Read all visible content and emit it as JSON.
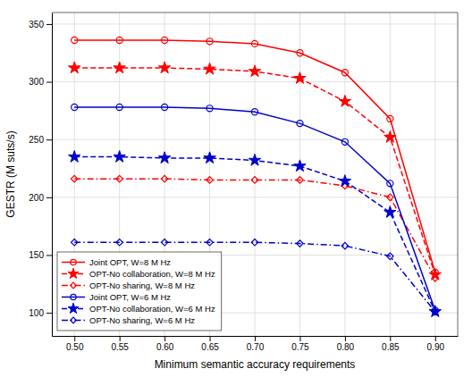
{
  "chart_data": {
    "type": "line",
    "xlabel": "Minimum semantic accuracy requirements",
    "ylabel": "GESTR (M suts/s)",
    "x": [
      0.5,
      0.55,
      0.6,
      0.65,
      0.7,
      0.75,
      0.8,
      0.85,
      0.9
    ],
    "xlim": [
      0.475,
      0.925
    ],
    "xticks": [
      {
        "value": 0.5,
        "label": "0.50"
      },
      0.55,
      {
        "value": 0.6,
        "label": "0.60"
      },
      0.65,
      {
        "value": 0.7,
        "label": "0.70"
      },
      0.75,
      {
        "value": 0.8,
        "label": "0.80"
      },
      0.85,
      {
        "value": 0.9,
        "label": "0.90"
      }
    ],
    "ylim": [
      80,
      360
    ],
    "yticks": [
      100,
      150,
      200,
      250,
      300,
      350
    ],
    "grid": true,
    "legend": "lower left",
    "series": [
      {
        "name": "Joint OPT, W=8 M Hz",
        "color": "#FF0000",
        "marker": "circle",
        "line_style": "solid",
        "values": [
          336,
          336,
          336,
          335,
          333,
          325,
          308,
          268,
          135
        ]
      },
      {
        "name": "OPT-No collaboration, W=8 M Hz",
        "color": "#FF0000",
        "marker": "star",
        "line_style": "dashed",
        "values": [
          312,
          312,
          312,
          311,
          309,
          303,
          283,
          252,
          133
        ]
      },
      {
        "name": "OPT-No sharing, W=8 M Hz",
        "color": "#FF0000",
        "marker": "diamond",
        "line_style": "dashdot",
        "values": [
          216,
          216,
          216,
          215,
          215,
          215,
          210,
          200,
          130
        ]
      },
      {
        "name": "Joint OPT, W=6 M Hz",
        "color": "#0000CD",
        "marker": "circle",
        "line_style": "solid",
        "values": [
          278,
          278,
          278,
          277,
          274,
          264,
          248,
          212,
          102
        ]
      },
      {
        "name": "OPT-No collaboration, W=6 M Hz",
        "color": "#0000CD",
        "marker": "star",
        "line_style": "dashed",
        "values": [
          235,
          235,
          234,
          234,
          232,
          227,
          214,
          187,
          101
        ]
      },
      {
        "name": "OPT-No sharing, W=6 M Hz",
        "color": "#0000CD",
        "marker": "diamond",
        "line_style": "dashdot",
        "values": [
          161,
          161,
          161,
          161,
          161,
          160,
          158,
          149,
          101
        ]
      }
    ]
  }
}
